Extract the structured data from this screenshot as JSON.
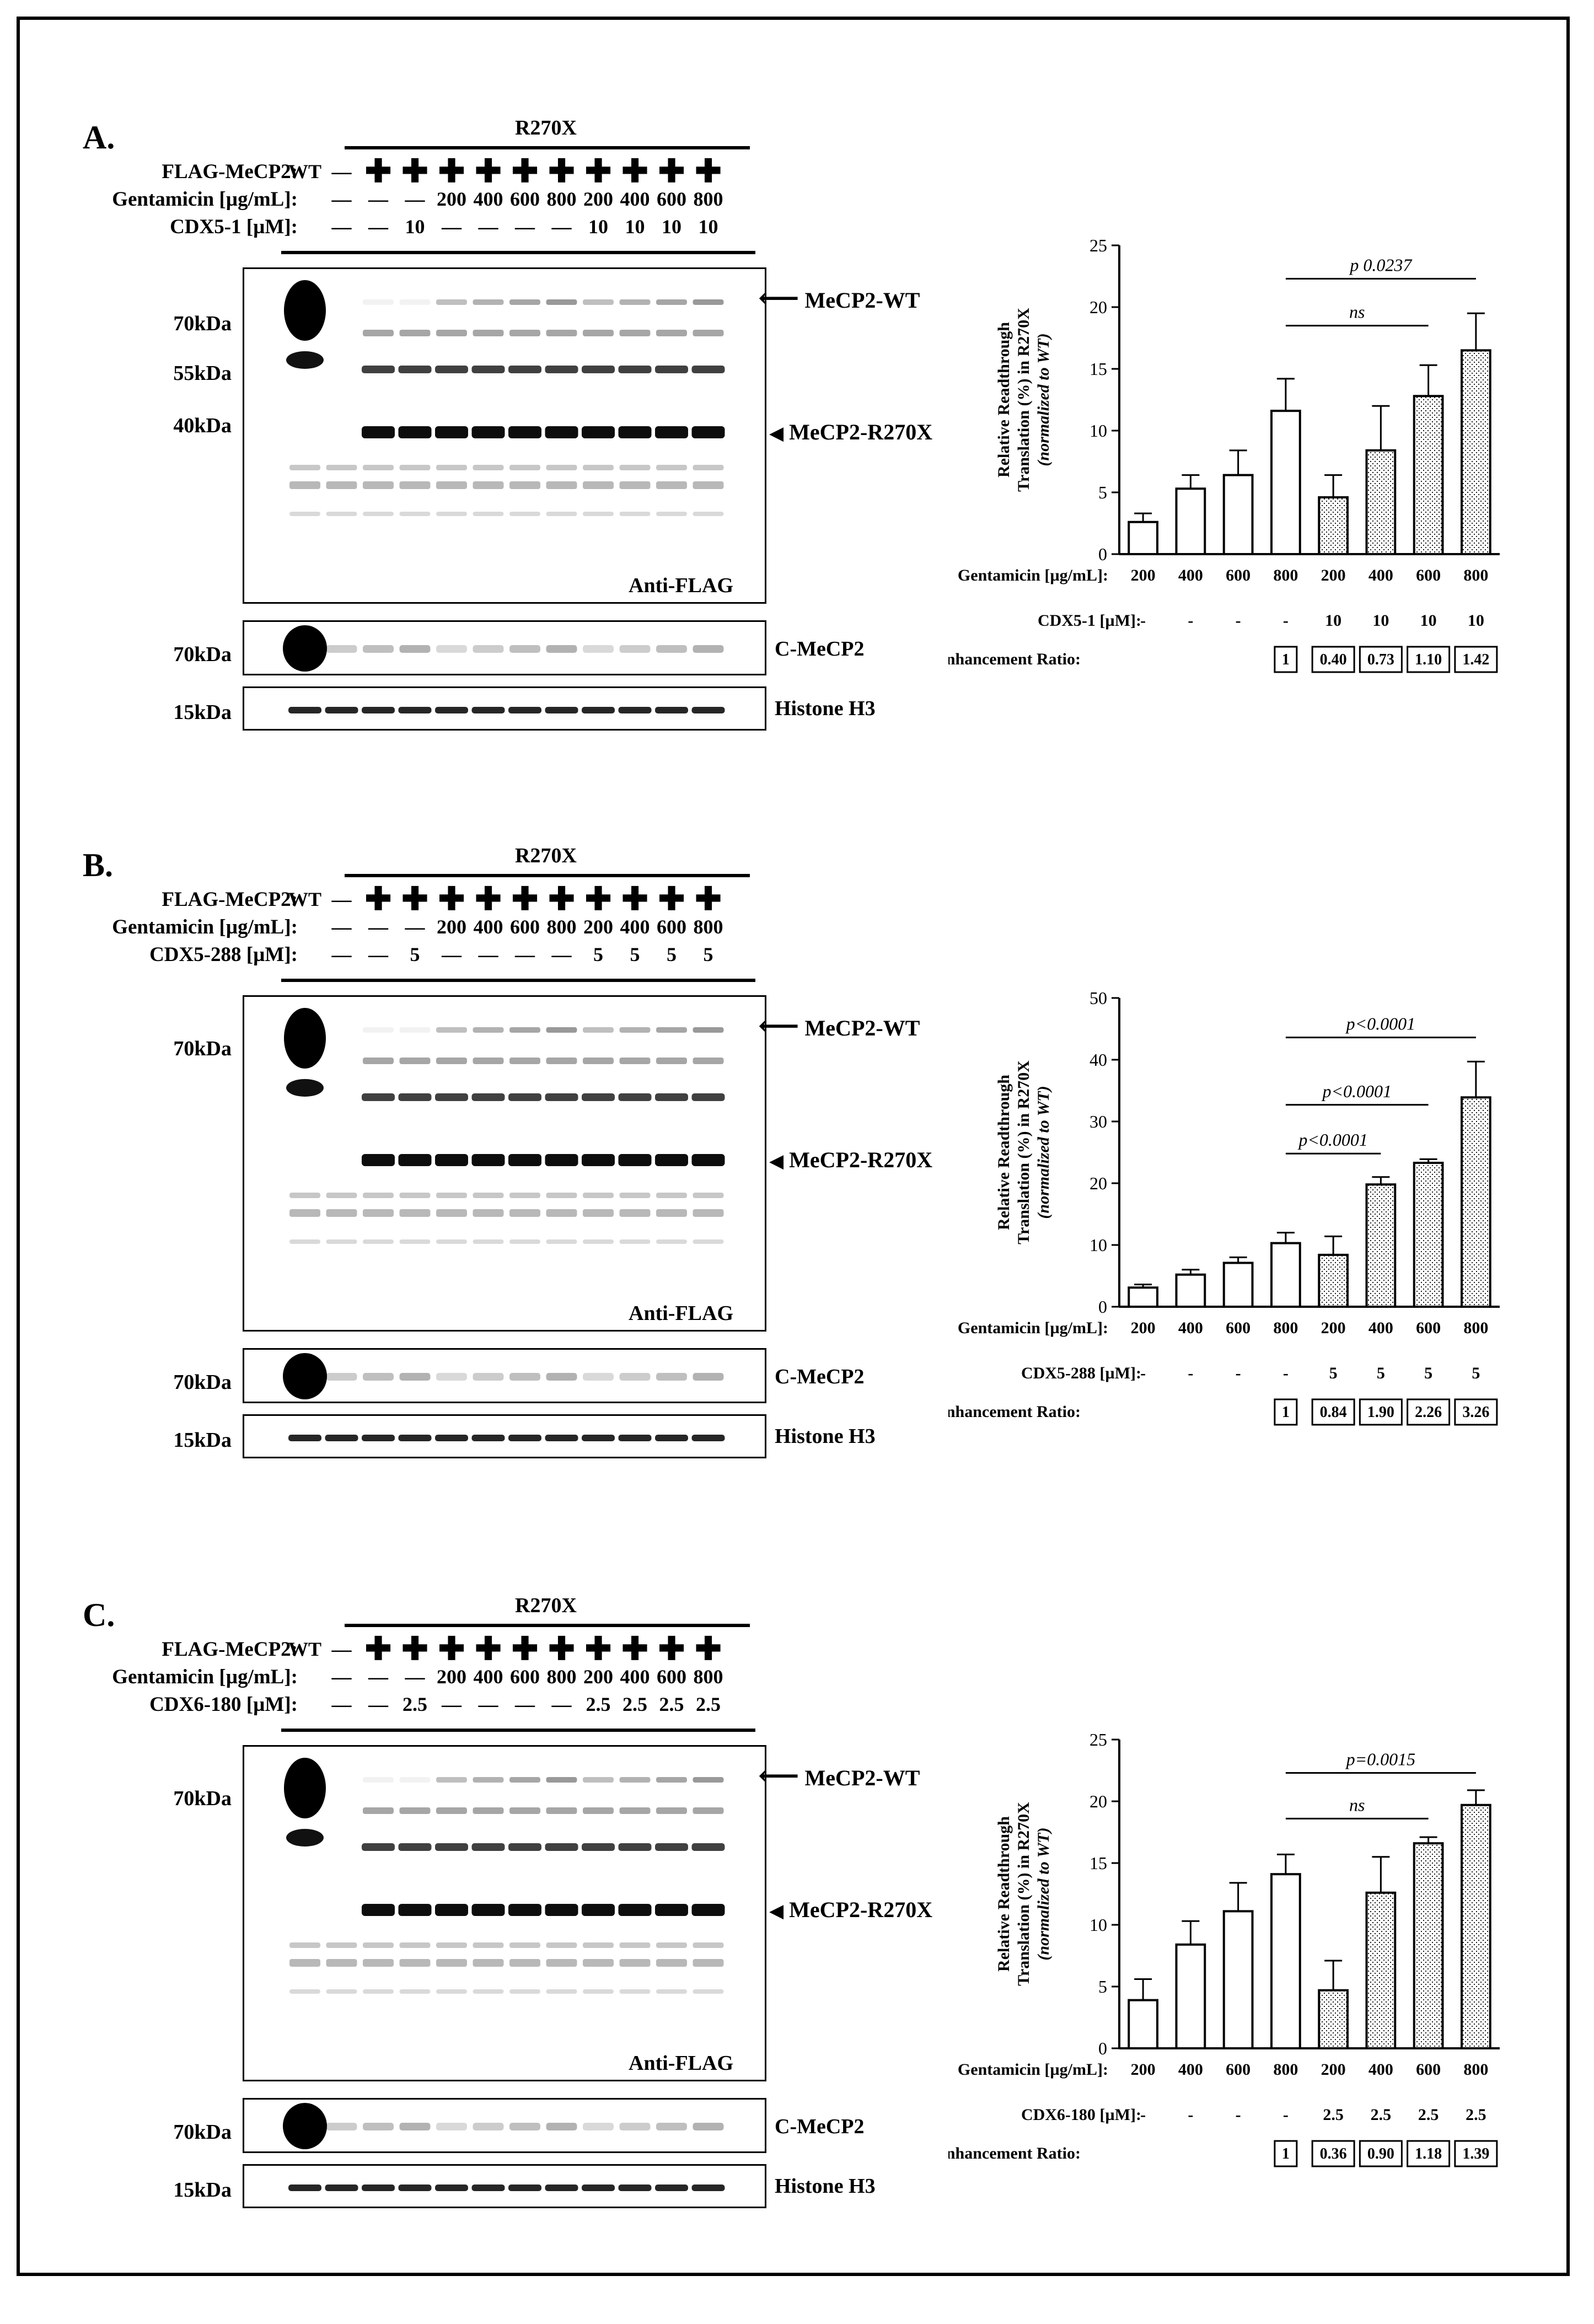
{
  "panels": [
    {
      "id": "A",
      "label": "A.",
      "group_label": "R270X",
      "rows": [
        {
          "label": "FLAG-MeCP2:",
          "cells": [
            "WT",
            "—",
            "✚",
            "✚",
            "✚",
            "✚",
            "✚",
            "✚",
            "✚",
            "✚",
            "✚",
            "✚"
          ]
        },
        {
          "label": "Gentamicin [µg/mL]:",
          "cells": [
            "—",
            "—",
            "—",
            "200",
            "400",
            "600",
            "800",
            "200",
            "400",
            "600",
            "800"
          ]
        },
        {
          "label": "CDX5-1 [µM]:",
          "cells": [
            "—",
            "—",
            "10",
            "—",
            "—",
            "—",
            "—",
            "10",
            "10",
            "10",
            "10"
          ]
        }
      ],
      "blot": {
        "markers": [
          "70kDa",
          "55kDa",
          "40kDa"
        ],
        "caption": "Anti-FLAG",
        "annot_wt": "MeCP2-WT",
        "annot_trunc": "MeCP2-R270X",
        "small_blots": [
          {
            "marker": "70kDa",
            "caption": "C-MeCP2"
          },
          {
            "marker": "15kDa",
            "caption": "Histone H3"
          }
        ]
      },
      "chart_data": {
        "type": "bar",
        "categories": [
          "200",
          "400",
          "600",
          "800",
          "200",
          "400",
          "600",
          "800"
        ],
        "values": [
          2.6,
          5.3,
          6.4,
          11.6,
          4.6,
          8.4,
          12.8,
          16.5
        ],
        "errors": [
          0.7,
          1.1,
          2.0,
          2.6,
          1.8,
          3.6,
          2.5,
          3.0
        ],
        "patterns": [
          "open",
          "open",
          "open",
          "open",
          "dotted",
          "dotted",
          "dotted",
          "dotted"
        ],
        "ylim": [
          0,
          25
        ],
        "yticks": [
          "0",
          "5",
          "10",
          "15",
          "20",
          "25"
        ],
        "ylabel_line1": "Relative Readthrough",
        "ylabel_line2": "Translation (%) in R270X",
        "ylabel_line3": "(normalized to WT)",
        "brackets": [
          {
            "from": 3,
            "to": 7,
            "label": "p  0.0237",
            "level": 22.3
          },
          {
            "from": 3,
            "to": 6,
            "label": "ns",
            "level": 18.5
          }
        ],
        "gentamicin_label": "Gentamicin [µg/mL]:",
        "compound_label": "CDX5-1 [µM]:",
        "compound_values": [
          "-",
          "-",
          "-",
          "-",
          "10",
          "10",
          "10",
          "10"
        ],
        "ratio_label": "Enhancement Ratio:",
        "ratios": [
          "1",
          "0.40",
          "0.73",
          "1.10",
          "1.42"
        ]
      }
    },
    {
      "id": "B",
      "label": "B.",
      "group_label": "R270X",
      "rows": [
        {
          "label": "FLAG-MeCP2:",
          "cells": [
            "WT",
            "—",
            "✚",
            "✚",
            "✚",
            "✚",
            "✚",
            "✚",
            "✚",
            "✚",
            "✚",
            "✚"
          ]
        },
        {
          "label": "Gentamicin [µg/mL]:",
          "cells": [
            "—",
            "—",
            "—",
            "200",
            "400",
            "600",
            "800",
            "200",
            "400",
            "600",
            "800"
          ]
        },
        {
          "label": "CDX5-288 [µM]:",
          "cells": [
            "—",
            "—",
            "5",
            "—",
            "—",
            "—",
            "—",
            "5",
            "5",
            "5",
            "5"
          ]
        }
      ],
      "blot": {
        "markers": [
          "70kDa"
        ],
        "caption": "Anti-FLAG",
        "annot_wt": "MeCP2-WT",
        "annot_trunc": "MeCP2-R270X",
        "small_blots": [
          {
            "marker": "70kDa",
            "caption": "C-MeCP2"
          },
          {
            "marker": "15kDa",
            "caption": "Histone H3"
          }
        ]
      },
      "chart_data": {
        "type": "bar",
        "categories": [
          "200",
          "400",
          "600",
          "800",
          "200",
          "400",
          "600",
          "800"
        ],
        "values": [
          3.1,
          5.2,
          7.1,
          10.3,
          8.4,
          19.8,
          23.3,
          33.9
        ],
        "errors": [
          0.5,
          0.8,
          0.9,
          1.7,
          3.0,
          1.2,
          0.6,
          5.8
        ],
        "patterns": [
          "open",
          "open",
          "open",
          "open",
          "dotted",
          "dotted",
          "dotted",
          "dotted"
        ],
        "ylim": [
          0,
          50
        ],
        "yticks": [
          "0",
          "10",
          "20",
          "30",
          "40",
          "50"
        ],
        "ylabel_line1": "Relative Readthrough",
        "ylabel_line2": "Translation (%) in R270X",
        "ylabel_line3": "(normalized to WT)",
        "brackets": [
          {
            "from": 3,
            "to": 7,
            "label": "p<0.0001",
            "level": 43.6
          },
          {
            "from": 3,
            "to": 6,
            "label": "p<0.0001",
            "level": 32.7
          },
          {
            "from": 3,
            "to": 5,
            "label": "p<0.0001",
            "level": 24.8
          }
        ],
        "gentamicin_label": "Gentamicin [µg/mL]:",
        "compound_label": "CDX5-288 [µM]:",
        "compound_values": [
          "-",
          "-",
          "-",
          "-",
          "5",
          "5",
          "5",
          "5"
        ],
        "ratio_label": "Enhancement Ratio:",
        "ratios": [
          "1",
          "0.84",
          "1.90",
          "2.26",
          "3.26"
        ]
      }
    },
    {
      "id": "C",
      "label": "C.",
      "group_label": "R270X",
      "rows": [
        {
          "label": "FLAG-MeCP2:",
          "cells": [
            "WT",
            "—",
            "✚",
            "✚",
            "✚",
            "✚",
            "✚",
            "✚",
            "✚",
            "✚",
            "✚",
            "✚"
          ]
        },
        {
          "label": "Gentamicin [µg/mL]:",
          "cells": [
            "—",
            "—",
            "—",
            "200",
            "400",
            "600",
            "800",
            "200",
            "400",
            "600",
            "800"
          ]
        },
        {
          "label": "CDX6-180 [µM]:",
          "cells": [
            "—",
            "—",
            "2.5",
            "—",
            "—",
            "—",
            "—",
            "2.5",
            "2.5",
            "2.5",
            "2.5"
          ]
        }
      ],
      "blot": {
        "markers": [
          "70kDa"
        ],
        "caption": "Anti-FLAG",
        "annot_wt": "MeCP2-WT",
        "annot_trunc": "MeCP2-R270X",
        "small_blots": [
          {
            "marker": "70kDa",
            "caption": "C-MeCP2"
          },
          {
            "marker": "15kDa",
            "caption": "Histone H3"
          }
        ]
      },
      "chart_data": {
        "type": "bar",
        "categories": [
          "200",
          "400",
          "600",
          "800",
          "200",
          "400",
          "600",
          "800"
        ],
        "values": [
          3.9,
          8.4,
          11.1,
          14.1,
          4.7,
          12.6,
          16.6,
          19.7
        ],
        "errors": [
          1.7,
          1.9,
          2.3,
          1.6,
          2.4,
          2.9,
          0.5,
          1.2
        ],
        "patterns": [
          "open",
          "open",
          "open",
          "open",
          "dotted",
          "dotted",
          "dotted",
          "dotted"
        ],
        "ylim": [
          0,
          25
        ],
        "yticks": [
          "0",
          "5",
          "10",
          "15",
          "20",
          "25"
        ],
        "ylabel_line1": "Relative Readthrough",
        "ylabel_line2": "Translation (%) in R270X",
        "ylabel_line3": "(normalized to WT)",
        "brackets": [
          {
            "from": 3,
            "to": 7,
            "label": "p=0.0015",
            "level": 22.3
          },
          {
            "from": 3,
            "to": 6,
            "label": "ns",
            "level": 18.6
          }
        ],
        "gentamicin_label": "Gentamicin [µg/mL]:",
        "compound_label": "CDX6-180 [µM]:",
        "compound_values": [
          "-",
          "-",
          "-",
          "-",
          "2.5",
          "2.5",
          "2.5",
          "2.5"
        ],
        "ratio_label": "Enhancement Ratio:",
        "ratios": [
          "1",
          "0.36",
          "0.90",
          "1.18",
          "1.39"
        ]
      }
    }
  ],
  "colors": {
    "ink": "#000000",
    "band": "#1a1a1a",
    "paper": "#ffffff"
  }
}
